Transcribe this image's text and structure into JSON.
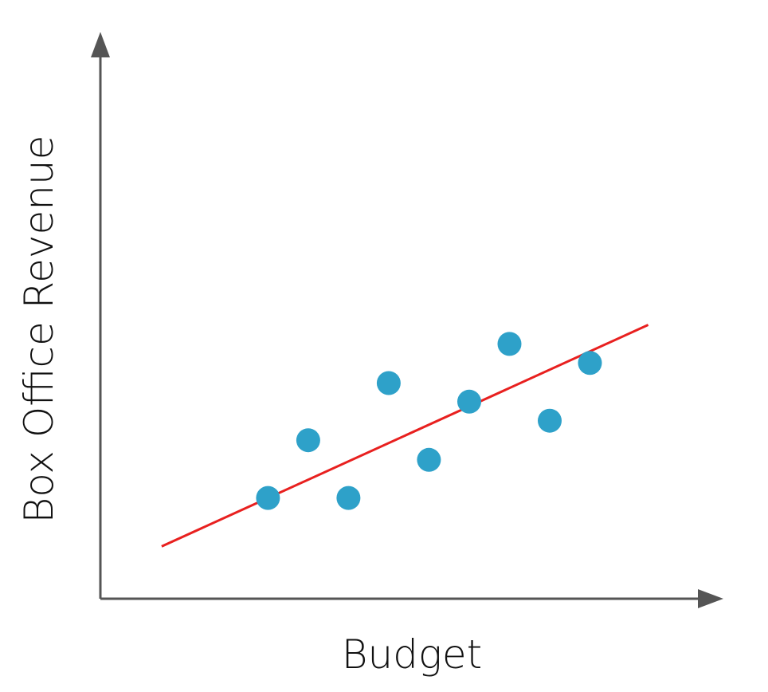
{
  "chart_data": {
    "type": "scatter",
    "title": "",
    "xlabel": "Budget",
    "ylabel": "Box Office Revenue",
    "xlim": [
      0,
      10
    ],
    "ylim": [
      0,
      10
    ],
    "grid": false,
    "legend": "none",
    "colors": {
      "points": "#2ea1c9",
      "trend": "#e8201f",
      "axes": "#555555"
    },
    "series": [
      {
        "name": "",
        "points": [
          {
            "x": 2.79,
            "y": 1.85
          },
          {
            "x": 3.46,
            "y": 2.91
          },
          {
            "x": 4.13,
            "y": 1.85
          },
          {
            "x": 4.8,
            "y": 3.96
          },
          {
            "x": 5.47,
            "y": 2.55
          },
          {
            "x": 6.14,
            "y": 3.62
          },
          {
            "x": 6.81,
            "y": 4.68
          },
          {
            "x": 7.48,
            "y": 3.27
          },
          {
            "x": 8.15,
            "y": 4.33
          }
        ]
      }
    ],
    "trendline": {
      "x": [
        1.02,
        9.12
      ],
      "y": [
        0.96,
        5.03
      ]
    }
  }
}
